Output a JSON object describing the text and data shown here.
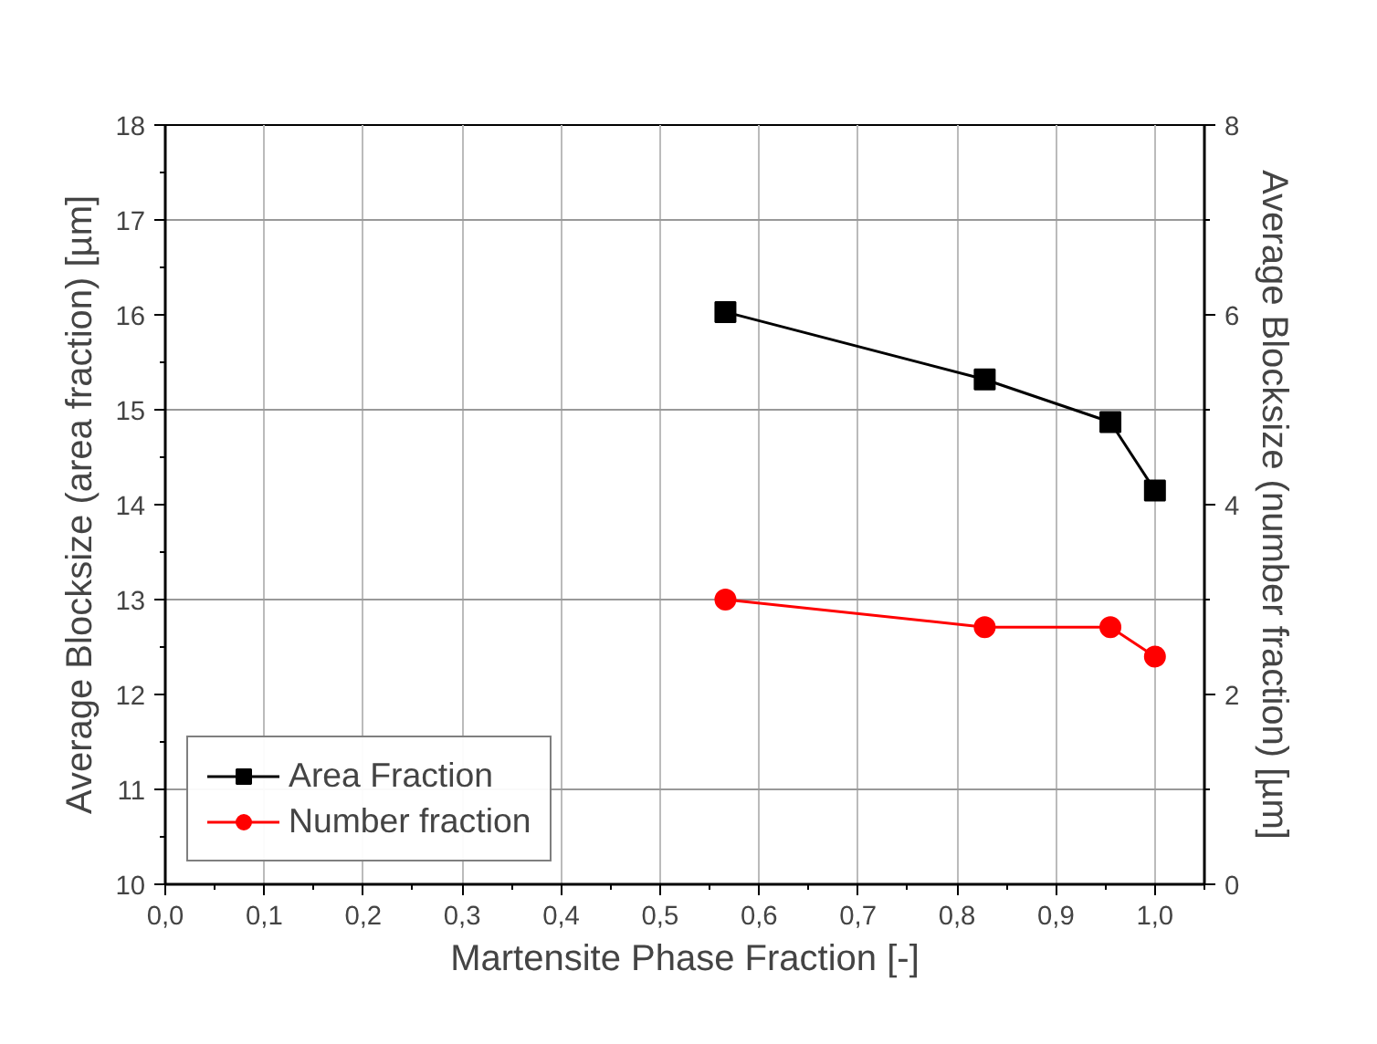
{
  "chart_data": {
    "type": "line",
    "xlabel": "Martensite Phase Fraction [-]",
    "ylabel": "Average Blocksize (area fraction) [µm]",
    "y2label": "Average Blocksize (number fraction) [µm]",
    "xlim": [
      0,
      1.05
    ],
    "xticks": [
      {
        "value": 0,
        "label": "0,0"
      },
      {
        "value": 0.1,
        "label": "0,1"
      },
      {
        "value": 0.2,
        "label": "0,2"
      },
      {
        "value": 0.3,
        "label": "0,3"
      },
      {
        "value": 0.4,
        "label": "0,4"
      },
      {
        "value": 0.5,
        "label": "0,5"
      },
      {
        "value": 0.6,
        "label": "0,6"
      },
      {
        "value": 0.7,
        "label": "0,7"
      },
      {
        "value": 0.8,
        "label": "0,8"
      },
      {
        "value": 0.9,
        "label": "0,9"
      },
      {
        "value": 1.0,
        "label": "1,0"
      }
    ],
    "ylim": [
      10,
      18
    ],
    "yticks": [
      10,
      11,
      12,
      13,
      14,
      15,
      16,
      17,
      18
    ],
    "y2lim": [
      0,
      8
    ],
    "y2ticks": [
      0,
      2,
      4,
      6,
      8
    ],
    "grid": true,
    "legend": "bottom left",
    "series": [
      {
        "name": "Area Fraction",
        "color": "#000000",
        "marker": "square",
        "x": [
          0.566,
          0.828,
          0.955,
          1.0
        ],
        "values": [
          16.03,
          15.32,
          14.87,
          14.15
        ]
      },
      {
        "name": "Number fraction",
        "color": "#ff0000",
        "marker": "circle",
        "axis": "y2",
        "x": [
          0.566,
          0.828,
          0.955,
          1.0
        ],
        "values": [
          3.0,
          2.71,
          2.71,
          2.4
        ]
      }
    ]
  }
}
